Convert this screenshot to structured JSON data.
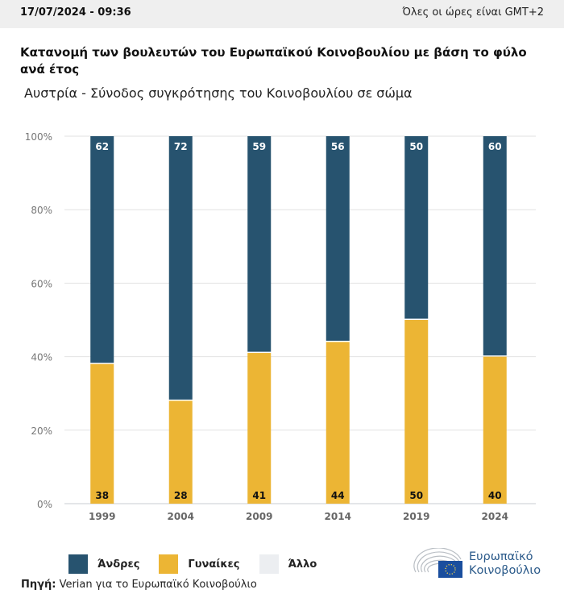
{
  "header": {
    "datetime": "17/07/2024 - 09:36",
    "timezone_note": "Όλες οι ώρες είναι GMT+2"
  },
  "title": "Κατανομή των βουλευτών του Ευρωπαϊκού Κοινοβουλίου με βάση το φύλο ανά έτος",
  "subtitle": "Αυστρία - Σύνοδος συγκρότησης του Κοινοβουλίου σε σώμα",
  "colors": {
    "men": "#27536f",
    "women": "#ecb534",
    "other": "#eceef1",
    "grid": "#e2e2e2"
  },
  "legend": [
    {
      "key": "men",
      "label": "Άνδρες"
    },
    {
      "key": "women",
      "label": "Γυναίκες"
    },
    {
      "key": "other",
      "label": "Άλλο"
    }
  ],
  "source_label": "Πηγή:",
  "source_text": " Verian για το Ευρωπαϊκό Κοινοβούλιο",
  "logo": {
    "line1": "Ευρωπαϊκό",
    "line2": "Κοινοβούλιο"
  },
  "chart_data": {
    "type": "bar",
    "stacked": true,
    "percent": true,
    "categories": [
      "1999",
      "2004",
      "2009",
      "2014",
      "2019",
      "2024"
    ],
    "series": [
      {
        "name": "Γυναίκες",
        "key": "women",
        "values": [
          38,
          28,
          41,
          44,
          50,
          40
        ]
      },
      {
        "name": "Άνδρες",
        "key": "men",
        "values": [
          62,
          72,
          59,
          56,
          50,
          60
        ]
      },
      {
        "name": "Άλλο",
        "key": "other",
        "values": [
          0,
          0,
          0,
          0,
          0,
          0
        ]
      }
    ],
    "yticks": [
      "0%",
      "20%",
      "40%",
      "60%",
      "80%",
      "100%"
    ],
    "ylim": [
      0,
      100
    ],
    "title": "Κατανομή των βουλευτών του Ευρωπαϊκού Κοινοβουλίου με βάση το φύλο ανά έτος",
    "subtitle": "Αυστρία - Σύνοδος συγκρότησης του Κοινοβουλίου σε σώμα",
    "xlabel": "",
    "ylabel": "",
    "grid": true,
    "legend_position": "bottom-left"
  }
}
